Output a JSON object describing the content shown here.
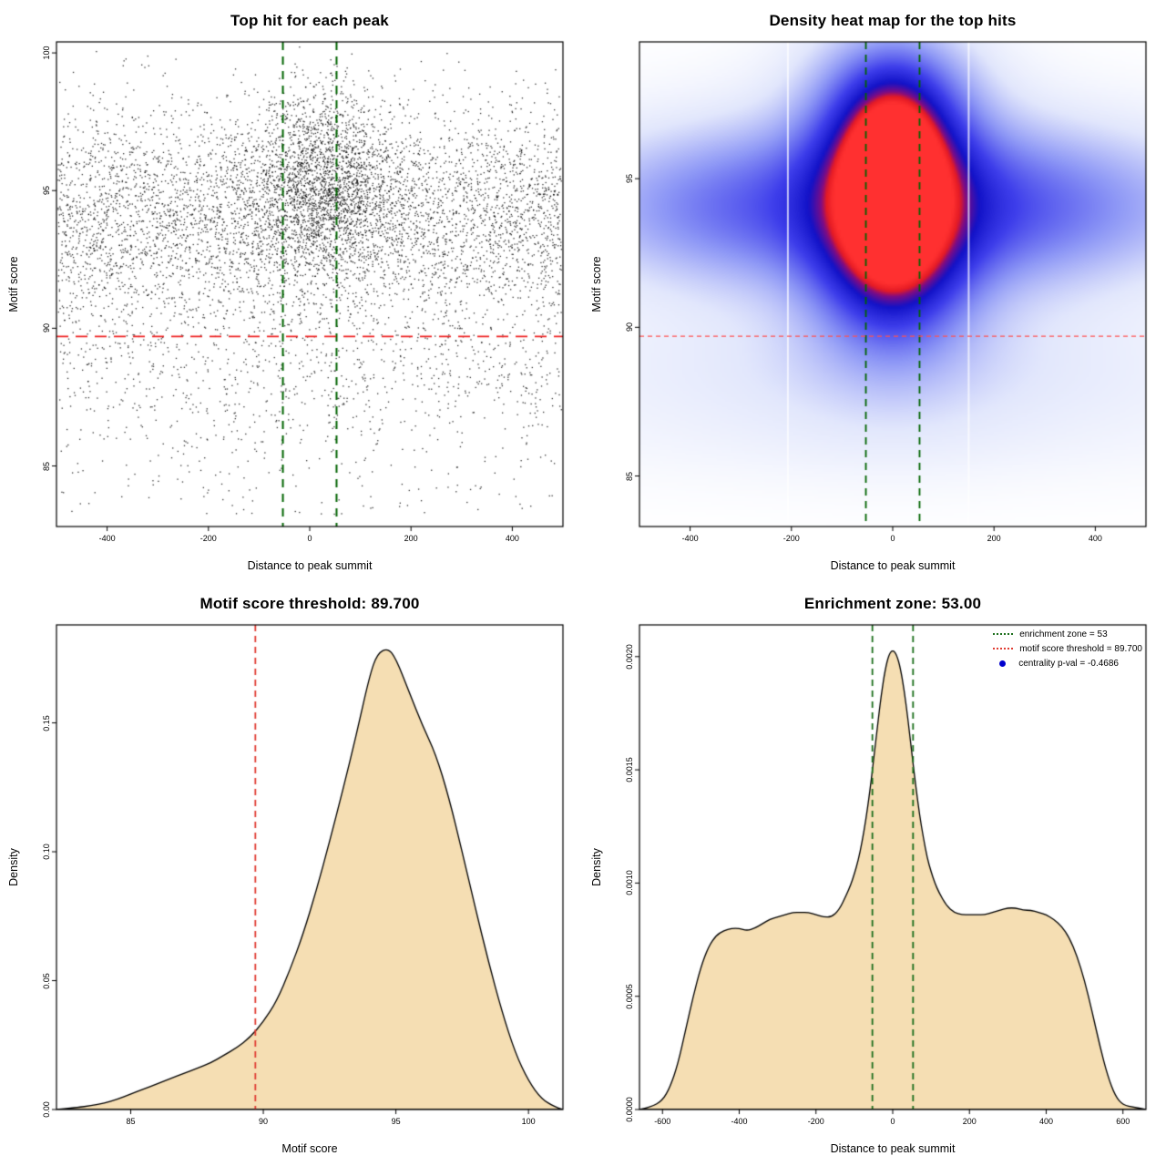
{
  "page": {
    "background": "#ffffff"
  },
  "chart_data": [
    {
      "type": "scatter",
      "title": "Top hit for each peak",
      "xlabel": "Distance to peak summit",
      "ylabel": "Motif score",
      "xlim": [
        -500,
        500
      ],
      "ylim": [
        82.8,
        100.4
      ],
      "xticks": [
        -400,
        -200,
        0,
        200,
        400
      ],
      "yticks": [
        85,
        90,
        95,
        100
      ],
      "point_color": "#000000",
      "point_alpha": 0.8,
      "point_size": 1.3,
      "n_points": 8000,
      "seed": 1234,
      "components": [
        {
          "weight": 0.6,
          "x_dist": "uniform",
          "x_params": [
            -497,
            497
          ],
          "y_dist": "normal",
          "y_params": [
            94.1,
            2.0
          ]
        },
        {
          "weight": 0.25,
          "x_dist": "normal",
          "x_params": [
            30,
            75
          ],
          "y_dist": "normal",
          "y_params": [
            95.3,
            1.7
          ]
        },
        {
          "weight": 0.1,
          "x_dist": "uniform",
          "x_params": [
            -497,
            497
          ],
          "y_dist": "normal",
          "y_params": [
            88.6,
            1.7
          ]
        },
        {
          "weight": 0.05,
          "x_dist": "uniform",
          "x_params": [
            -497,
            497
          ],
          "y_dist": "uniform",
          "y_params": [
            83.2,
            92.0
          ]
        }
      ],
      "vlines": {
        "x": [
          -53,
          53
        ],
        "color": "#006400",
        "dash": [
          9,
          7
        ],
        "width": 2
      },
      "hlines": {
        "y": [
          89.7
        ],
        "color": "#ee2222",
        "dash": [
          13,
          8
        ],
        "width": 1.8
      }
    },
    {
      "type": "heatmap",
      "title": "Density heat map for the top hits",
      "xlabel": "Distance to peak summit",
      "ylabel": "Motif score",
      "xlim": [
        -500,
        500
      ],
      "ylim": [
        83.3,
        99.6
      ],
      "xticks": [
        -400,
        -200,
        0,
        200,
        400
      ],
      "yticks": [
        85,
        90,
        95
      ],
      "blobs": [
        {
          "x": 0,
          "y": 94.7,
          "sx": 50,
          "sy": 1.5,
          "a": 1.0
        },
        {
          "x": 0,
          "y": 94.3,
          "sx": 90,
          "sy": 2.4,
          "a": 0.62
        },
        {
          "x": 0,
          "y": 94.5,
          "sx": 150,
          "sy": 3.8,
          "a": 0.3
        },
        {
          "x": 0,
          "y": 94.1,
          "sx": 520,
          "sy": 2.0,
          "a": 0.4
        },
        {
          "x": 0,
          "y": 97.2,
          "sx": 100,
          "sy": 1.5,
          "a": 0.22
        },
        {
          "x": 0,
          "y": 98.8,
          "sx": 120,
          "sy": 1.2,
          "a": 0.1
        },
        {
          "x": 0,
          "y": 91.3,
          "sx": 110,
          "sy": 1.6,
          "a": 0.18
        },
        {
          "x": 0,
          "y": 88.6,
          "sx": 520,
          "sy": 1.5,
          "a": 0.13
        },
        {
          "x": 0,
          "y": 86.2,
          "sx": 520,
          "sy": 1.3,
          "a": 0.06
        },
        {
          "x": -340,
          "y": 94.0,
          "sx": 140,
          "sy": 2.2,
          "a": 0.1
        },
        {
          "x": 310,
          "y": 93.9,
          "sx": 150,
          "sy": 2.2,
          "a": 0.1
        }
      ],
      "colormap": [
        [
          0.0,
          255,
          255,
          255
        ],
        [
          0.15,
          226,
          231,
          252
        ],
        [
          0.35,
          142,
          152,
          246
        ],
        [
          0.55,
          62,
          62,
          235
        ],
        [
          0.72,
          18,
          18,
          200
        ],
        [
          0.84,
          130,
          12,
          130
        ],
        [
          0.9,
          228,
          26,
          36
        ],
        [
          1.0,
          255,
          48,
          48
        ]
      ],
      "white_lines": [
        -207,
        150
      ],
      "vlines": {
        "x": [
          -53,
          53
        ],
        "color": "#006400",
        "dash": [
          8,
          6
        ],
        "width": 1.8
      },
      "hlines": {
        "y": [
          89.7
        ],
        "color": "#ff5050",
        "dash": [
          5,
          4
        ],
        "width": 1.4
      }
    },
    {
      "type": "density",
      "title": "Motif score threshold: 89.700",
      "xlabel": "Motif score",
      "ylabel": "Density",
      "xlim": [
        82.2,
        101.3
      ],
      "ylim": [
        0,
        0.188
      ],
      "xticks": [
        85,
        90,
        95,
        100
      ],
      "yticks": [
        0,
        0.05,
        0.1,
        0.15
      ],
      "ytick_labels": [
        "0.00",
        "0.05",
        "0.10",
        "0.15"
      ],
      "fill": "#f5deb3",
      "stroke": "#000000",
      "curve": [
        [
          82.2,
          0
        ],
        [
          83,
          0.0008
        ],
        [
          83.5,
          0.0015
        ],
        [
          84,
          0.0025
        ],
        [
          84.5,
          0.004
        ],
        [
          85,
          0.006
        ],
        [
          85.5,
          0.008
        ],
        [
          86,
          0.01
        ],
        [
          86.5,
          0.012
        ],
        [
          87,
          0.014
        ],
        [
          87.5,
          0.016
        ],
        [
          88,
          0.018
        ],
        [
          88.5,
          0.021
        ],
        [
          89,
          0.024
        ],
        [
          89.5,
          0.028
        ],
        [
          90,
          0.034
        ],
        [
          90.5,
          0.042
        ],
        [
          91,
          0.054
        ],
        [
          91.5,
          0.068
        ],
        [
          92,
          0.085
        ],
        [
          92.5,
          0.104
        ],
        [
          93,
          0.124
        ],
        [
          93.5,
          0.145
        ],
        [
          94,
          0.168
        ],
        [
          94.3,
          0.177
        ],
        [
          94.7,
          0.179
        ],
        [
          95,
          0.175
        ],
        [
          95.5,
          0.162
        ],
        [
          96,
          0.149
        ],
        [
          96.5,
          0.138
        ],
        [
          97,
          0.121
        ],
        [
          97.5,
          0.1
        ],
        [
          98,
          0.078
        ],
        [
          98.5,
          0.057
        ],
        [
          99,
          0.038
        ],
        [
          99.5,
          0.022
        ],
        [
          100,
          0.011
        ],
        [
          100.5,
          0.004
        ],
        [
          101,
          0.001
        ],
        [
          101.3,
          0
        ]
      ],
      "vlines": {
        "x": [
          89.7
        ],
        "color": "#e03c32",
        "dash": [
          7,
          5
        ],
        "width": 1.8
      }
    },
    {
      "type": "density",
      "title": "Enrichment zone: 53.00",
      "xlabel": "Distance to peak summit",
      "ylabel": "Density",
      "xlim": [
        -660,
        660
      ],
      "ylim": [
        0,
        0.00214
      ],
      "xticks": [
        -600,
        -400,
        -200,
        0,
        200,
        400,
        600
      ],
      "yticks": [
        0,
        0.0005,
        0.001,
        0.0015,
        0.002
      ],
      "ytick_labels": [
        "0.0000",
        "0.0005",
        "0.0010",
        "0.0015",
        "0.0020"
      ],
      "fill": "#f5deb3",
      "stroke": "#000000",
      "curve": [
        [
          -660,
          0
        ],
        [
          -630,
          1e-05
        ],
        [
          -600,
          4e-05
        ],
        [
          -580,
          0.0001
        ],
        [
          -560,
          0.0002
        ],
        [
          -540,
          0.00035
        ],
        [
          -520,
          0.0005
        ],
        [
          -500,
          0.00063
        ],
        [
          -480,
          0.00072
        ],
        [
          -460,
          0.00077
        ],
        [
          -440,
          0.00079
        ],
        [
          -420,
          0.0008
        ],
        [
          -400,
          0.0008
        ],
        [
          -380,
          0.00079
        ],
        [
          -360,
          0.0008
        ],
        [
          -340,
          0.00082
        ],
        [
          -320,
          0.00084
        ],
        [
          -300,
          0.00085
        ],
        [
          -280,
          0.00086
        ],
        [
          -260,
          0.00087
        ],
        [
          -240,
          0.00087
        ],
        [
          -220,
          0.00087
        ],
        [
          -200,
          0.00086
        ],
        [
          -180,
          0.00085
        ],
        [
          -160,
          0.00085
        ],
        [
          -140,
          0.00088
        ],
        [
          -120,
          0.00095
        ],
        [
          -110,
          0.00099
        ],
        [
          -100,
          0.00104
        ],
        [
          -90,
          0.0011
        ],
        [
          -80,
          0.00118
        ],
        [
          -70,
          0.00128
        ],
        [
          -60,
          0.0014
        ],
        [
          -50,
          0.00154
        ],
        [
          -40,
          0.00169
        ],
        [
          -30,
          0.00183
        ],
        [
          -20,
          0.00194
        ],
        [
          -10,
          0.00201
        ],
        [
          0,
          0.00203
        ],
        [
          10,
          0.00201
        ],
        [
          20,
          0.00195
        ],
        [
          30,
          0.00185
        ],
        [
          40,
          0.00172
        ],
        [
          50,
          0.00157
        ],
        [
          60,
          0.00143
        ],
        [
          70,
          0.0013
        ],
        [
          80,
          0.0012
        ],
        [
          90,
          0.00111
        ],
        [
          100,
          0.00105
        ],
        [
          110,
          0.001
        ],
        [
          120,
          0.00096
        ],
        [
          140,
          0.0009
        ],
        [
          160,
          0.00087
        ],
        [
          180,
          0.00086
        ],
        [
          200,
          0.00086
        ],
        [
          220,
          0.00086
        ],
        [
          240,
          0.00086
        ],
        [
          260,
          0.00087
        ],
        [
          280,
          0.00088
        ],
        [
          300,
          0.00089
        ],
        [
          320,
          0.00089
        ],
        [
          340,
          0.00088
        ],
        [
          360,
          0.00088
        ],
        [
          380,
          0.00087
        ],
        [
          400,
          0.00086
        ],
        [
          420,
          0.00084
        ],
        [
          440,
          0.00081
        ],
        [
          460,
          0.00076
        ],
        [
          480,
          0.00068
        ],
        [
          500,
          0.00057
        ],
        [
          520,
          0.00043
        ],
        [
          540,
          0.00028
        ],
        [
          560,
          0.00015
        ],
        [
          580,
          6e-05
        ],
        [
          600,
          2e-05
        ],
        [
          630,
          1e-05
        ],
        [
          660,
          0
        ]
      ],
      "vlines": {
        "x": [
          -53,
          53
        ],
        "color": "#1b6e1b",
        "dash": [
          7,
          5
        ],
        "width": 1.8
      },
      "legend": {
        "entries": [
          {
            "type": "line",
            "color": "#1b6e1b",
            "label": "enrichment zone = 53"
          },
          {
            "type": "line",
            "color": "#e03c32",
            "label": "motif score threshold = 89.700"
          },
          {
            "type": "point",
            "color": "#0000cd",
            "label": "centrality p-val = -0.4686"
          }
        ]
      }
    }
  ]
}
